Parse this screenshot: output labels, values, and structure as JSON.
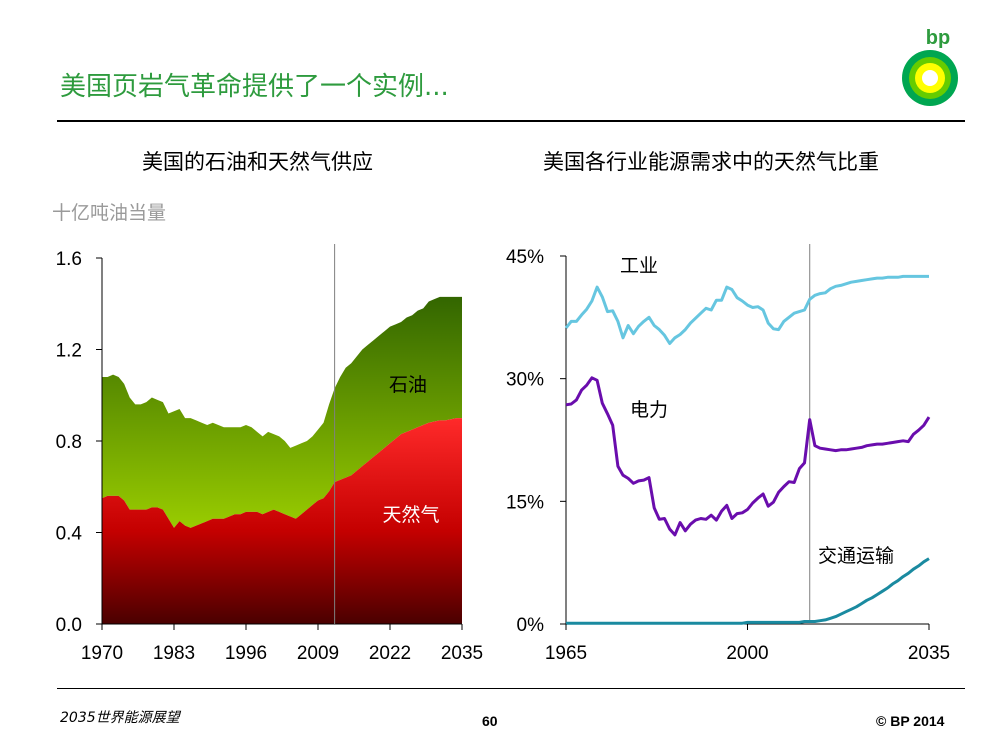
{
  "slide": {
    "title": "美国页岩气革命提供了一个实例...",
    "footer_left": "2035世界能源展望",
    "page_number": "60",
    "copyright": "© BP 2014",
    "logo_text": "bp"
  },
  "colors": {
    "title": "#2e9b3e",
    "oil_light": "#99cc00",
    "oil_dark": "#336600",
    "gas_light": "#ff2020",
    "gas_dark": "#550000",
    "industry": "#66c6e0",
    "power": "#6a0dad",
    "transport": "#1a8aa0"
  },
  "chart_data": [
    {
      "type": "area",
      "title": "美国的石油和天然气供应",
      "ylabel": "十亿吨油当量",
      "ylim": [
        0,
        1.6
      ],
      "yticks": [
        0.0,
        0.4,
        0.8,
        1.2,
        1.6
      ],
      "ytick_labels": [
        "0.0",
        "0.4",
        "0.8",
        "1.2",
        "1.6"
      ],
      "xlim": [
        1970,
        2035
      ],
      "xticks": [
        1970,
        1983,
        1996,
        2009,
        2022,
        2035
      ],
      "xtick_labels": [
        "1970",
        "1983",
        "1996",
        "2009",
        "2022",
        "2035"
      ],
      "forecast_line_x": 2012,
      "stacked": true,
      "x": [
        1970,
        1971,
        1972,
        1973,
        1974,
        1975,
        1976,
        1977,
        1978,
        1979,
        1980,
        1981,
        1982,
        1983,
        1984,
        1985,
        1986,
        1987,
        1988,
        1989,
        1990,
        1991,
        1992,
        1993,
        1994,
        1995,
        1996,
        1997,
        1998,
        1999,
        2000,
        2001,
        2002,
        2003,
        2004,
        2005,
        2006,
        2007,
        2008,
        2009,
        2010,
        2011,
        2012,
        2013,
        2014,
        2015,
        2016,
        2017,
        2018,
        2019,
        2020,
        2021,
        2022,
        2023,
        2024,
        2025,
        2026,
        2027,
        2028,
        2029,
        2030,
        2031,
        2032,
        2033,
        2034,
        2035
      ],
      "series": [
        {
          "name": "天然气",
          "label": "天然气",
          "values": [
            0.55,
            0.56,
            0.56,
            0.56,
            0.54,
            0.5,
            0.5,
            0.5,
            0.5,
            0.51,
            0.51,
            0.5,
            0.46,
            0.42,
            0.45,
            0.43,
            0.42,
            0.43,
            0.44,
            0.45,
            0.46,
            0.46,
            0.46,
            0.47,
            0.48,
            0.48,
            0.49,
            0.49,
            0.49,
            0.48,
            0.49,
            0.5,
            0.49,
            0.48,
            0.47,
            0.46,
            0.48,
            0.5,
            0.52,
            0.54,
            0.55,
            0.58,
            0.62,
            0.63,
            0.64,
            0.65,
            0.67,
            0.69,
            0.71,
            0.73,
            0.75,
            0.77,
            0.79,
            0.81,
            0.83,
            0.84,
            0.85,
            0.86,
            0.87,
            0.88,
            0.885,
            0.89,
            0.89,
            0.895,
            0.9,
            0.9
          ]
        },
        {
          "name": "石油",
          "label": "石油",
          "values": [
            0.53,
            0.52,
            0.53,
            0.52,
            0.51,
            0.49,
            0.46,
            0.46,
            0.47,
            0.48,
            0.47,
            0.47,
            0.46,
            0.51,
            0.49,
            0.47,
            0.48,
            0.46,
            0.44,
            0.42,
            0.42,
            0.41,
            0.4,
            0.39,
            0.38,
            0.38,
            0.38,
            0.37,
            0.35,
            0.34,
            0.35,
            0.33,
            0.33,
            0.32,
            0.3,
            0.32,
            0.31,
            0.3,
            0.3,
            0.31,
            0.33,
            0.38,
            0.41,
            0.45,
            0.48,
            0.49,
            0.5,
            0.51,
            0.51,
            0.51,
            0.51,
            0.51,
            0.51,
            0.5,
            0.49,
            0.5,
            0.5,
            0.51,
            0.51,
            0.53,
            0.535,
            0.54,
            0.54,
            0.535,
            0.53,
            0.53
          ]
        }
      ]
    },
    {
      "type": "line",
      "title": "美国各行业能源需求中的天然气比重",
      "ylim": [
        0,
        45
      ],
      "yticks": [
        0,
        15,
        30,
        45
      ],
      "ytick_labels": [
        "0%",
        "15%",
        "30%",
        "45%"
      ],
      "xlim": [
        1965,
        2035
      ],
      "xticks": [
        1965,
        2000,
        2035
      ],
      "xtick_labels": [
        "1965",
        "2000",
        "2035"
      ],
      "forecast_line_x": 2012,
      "x": [
        1965,
        1966,
        1967,
        1968,
        1969,
        1970,
        1971,
        1972,
        1973,
        1974,
        1975,
        1976,
        1977,
        1978,
        1979,
        1980,
        1981,
        1982,
        1983,
        1984,
        1985,
        1986,
        1987,
        1988,
        1989,
        1990,
        1991,
        1992,
        1993,
        1994,
        1995,
        1996,
        1997,
        1998,
        1999,
        2000,
        2001,
        2002,
        2003,
        2004,
        2005,
        2006,
        2007,
        2008,
        2009,
        2010,
        2011,
        2012,
        2013,
        2014,
        2015,
        2016,
        2017,
        2018,
        2019,
        2020,
        2021,
        2022,
        2023,
        2024,
        2025,
        2026,
        2027,
        2028,
        2029,
        2030,
        2031,
        2032,
        2033,
        2034,
        2035
      ],
      "series": [
        {
          "name": "工业",
          "label": "工业",
          "values": [
            36.2,
            37.0,
            37.0,
            37.8,
            38.5,
            39.5,
            41.2,
            40.0,
            38.2,
            38.3,
            37.0,
            35.0,
            36.5,
            35.5,
            36.4,
            37.0,
            37.5,
            36.5,
            36.0,
            35.3,
            34.3,
            35.0,
            35.4,
            36.0,
            36.8,
            37.4,
            38.0,
            38.6,
            38.4,
            39.6,
            39.6,
            41.2,
            40.9,
            39.9,
            39.5,
            39.0,
            38.7,
            38.8,
            38.4,
            36.8,
            36.1,
            36.0,
            37.0,
            37.5,
            38.0,
            38.2,
            38.4,
            39.7,
            40.2,
            40.4,
            40.5,
            41.0,
            41.3,
            41.4,
            41.6,
            41.8,
            41.9,
            42.0,
            42.1,
            42.2,
            42.3,
            42.3,
            42.4,
            42.4,
            42.4,
            42.5,
            42.5,
            42.5,
            42.5,
            42.5,
            42.5
          ]
        },
        {
          "name": "电力",
          "label": "电力",
          "values": [
            26.8,
            26.9,
            27.4,
            28.6,
            29.2,
            30.1,
            29.8,
            27.0,
            25.7,
            24.3,
            19.3,
            18.2,
            17.8,
            17.2,
            17.5,
            17.6,
            17.9,
            14.2,
            12.8,
            12.9,
            11.6,
            10.9,
            12.4,
            11.4,
            12.2,
            12.7,
            12.9,
            12.8,
            13.3,
            12.7,
            13.8,
            14.5,
            12.9,
            13.5,
            13.6,
            14.0,
            14.8,
            15.4,
            15.9,
            14.4,
            14.9,
            16.1,
            16.8,
            17.4,
            17.3,
            19.0,
            19.7,
            25.0,
            21.8,
            21.5,
            21.4,
            21.3,
            21.2,
            21.3,
            21.3,
            21.4,
            21.5,
            21.6,
            21.8,
            21.9,
            22.0,
            22.0,
            22.1,
            22.2,
            22.3,
            22.4,
            22.3,
            23.2,
            23.7,
            24.3,
            25.3
          ]
        },
        {
          "name": "交通运输",
          "label": "交通运输",
          "values": [
            0.1,
            0.1,
            0.1,
            0.1,
            0.1,
            0.1,
            0.1,
            0.1,
            0.1,
            0.1,
            0.1,
            0.1,
            0.1,
            0.1,
            0.1,
            0.1,
            0.1,
            0.1,
            0.1,
            0.1,
            0.1,
            0.1,
            0.1,
            0.1,
            0.1,
            0.1,
            0.1,
            0.1,
            0.1,
            0.1,
            0.1,
            0.1,
            0.1,
            0.1,
            0.1,
            0.2,
            0.2,
            0.2,
            0.2,
            0.2,
            0.2,
            0.2,
            0.2,
            0.2,
            0.2,
            0.2,
            0.3,
            0.3,
            0.3,
            0.4,
            0.5,
            0.7,
            0.9,
            1.2,
            1.5,
            1.8,
            2.1,
            2.5,
            2.9,
            3.2,
            3.6,
            4.0,
            4.4,
            4.9,
            5.3,
            5.8,
            6.2,
            6.7,
            7.1,
            7.6,
            8.0
          ]
        }
      ]
    }
  ]
}
